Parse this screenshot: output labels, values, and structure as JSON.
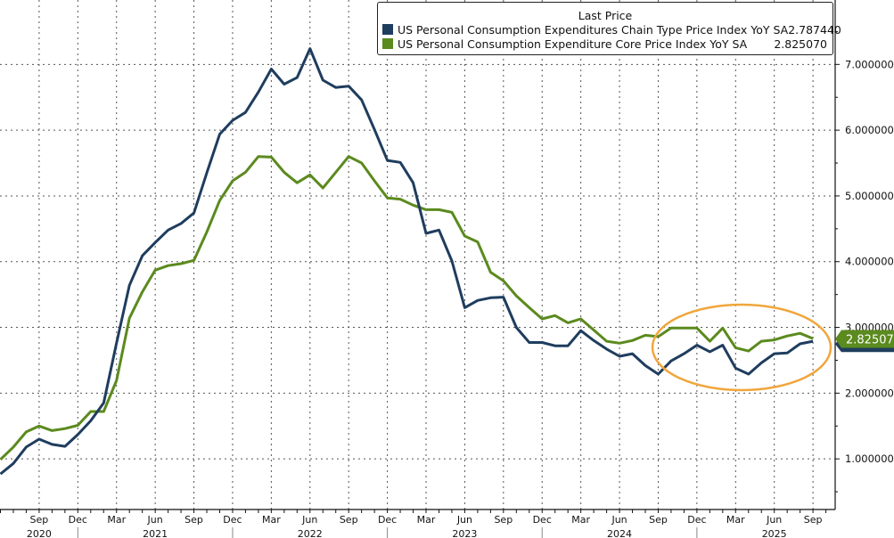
{
  "chart_data": {
    "type": "line",
    "title": "",
    "xlabel": "",
    "ylabel": "",
    "legend_title": "Last Price",
    "legend_position": "top-right",
    "grid": true,
    "ylim": [
      0.23,
      7.98
    ],
    "y_axis_side": "right",
    "y_ticks": [
      "1.000000",
      "2.000000",
      "3.000000",
      "4.000000",
      "5.000000",
      "6.000000",
      "7.000000"
    ],
    "x_start": "2020-06",
    "x_end": "2025-09",
    "x_tick_labels": [
      {
        "month": "Sep",
        "year": "2020"
      },
      {
        "month": "Dec",
        "year": ""
      },
      {
        "month": "Mar",
        "year": ""
      },
      {
        "month": "Jun",
        "year": "2021"
      },
      {
        "month": "Sep",
        "year": ""
      },
      {
        "month": "Dec",
        "year": ""
      },
      {
        "month": "Mar",
        "year": ""
      },
      {
        "month": "Jun",
        "year": "2022"
      },
      {
        "month": "Sep",
        "year": ""
      },
      {
        "month": "Dec",
        "year": ""
      },
      {
        "month": "Mar",
        "year": ""
      },
      {
        "month": "Jun",
        "year": "2023"
      },
      {
        "month": "Sep",
        "year": ""
      },
      {
        "month": "Dec",
        "year": ""
      },
      {
        "month": "Mar",
        "year": ""
      },
      {
        "month": "Jun",
        "year": "2024"
      },
      {
        "month": "Sep",
        "year": ""
      },
      {
        "month": "Dec",
        "year": ""
      },
      {
        "month": "Mar",
        "year": ""
      },
      {
        "month": "Jun",
        "year": "2025"
      },
      {
        "month": "Sep",
        "year": ""
      }
    ],
    "series": [
      {
        "name": "US Personal Consumption Expenditures Chain Type Price Index YoY SA",
        "last_value": "2.787440",
        "color": "#1f3d5e",
        "values": [
          0.77,
          0.93,
          1.18,
          1.3,
          1.22,
          1.19,
          1.37,
          1.58,
          1.85,
          2.76,
          3.64,
          4.09,
          4.29,
          4.48,
          4.58,
          4.74,
          5.35,
          5.94,
          6.15,
          6.27,
          6.58,
          6.93,
          6.7,
          6.8,
          7.24,
          6.76,
          6.65,
          6.67,
          6.46,
          6.01,
          5.54,
          5.51,
          5.2,
          4.43,
          4.48,
          4.01,
          3.3,
          3.41,
          3.45,
          3.46,
          3.0,
          2.77,
          2.77,
          2.72,
          2.72,
          2.95,
          2.8,
          2.67,
          2.56,
          2.6,
          2.42,
          2.29,
          2.49,
          2.6,
          2.73,
          2.63,
          2.73,
          2.38,
          2.29,
          2.46,
          2.6,
          2.61,
          2.75,
          2.79
        ]
      },
      {
        "name": "US Personal Consumption Expenditure Core Price Index YoY SA",
        "last_value": "2.825070",
        "color": "#5b8a1e",
        "values": [
          0.99,
          1.18,
          1.41,
          1.5,
          1.43,
          1.46,
          1.51,
          1.72,
          1.72,
          2.19,
          3.14,
          3.54,
          3.87,
          3.94,
          3.97,
          4.02,
          4.45,
          4.93,
          5.23,
          5.36,
          5.6,
          5.59,
          5.36,
          5.2,
          5.32,
          5.12,
          5.36,
          5.6,
          5.5,
          5.23,
          4.97,
          4.95,
          4.86,
          4.79,
          4.79,
          4.75,
          4.39,
          4.3,
          3.84,
          3.71,
          3.48,
          3.3,
          3.13,
          3.18,
          3.07,
          3.13,
          2.96,
          2.79,
          2.76,
          2.8,
          2.88,
          2.86,
          2.99,
          2.99,
          2.99,
          2.79,
          2.99,
          2.69,
          2.64,
          2.79,
          2.81,
          2.87,
          2.91,
          2.83
        ]
      }
    ],
    "last_price_tag": "2.825070",
    "annotation": {
      "shape": "ellipse",
      "color": "#f0a63c",
      "covers": "2024-09 to 2025-09"
    }
  }
}
